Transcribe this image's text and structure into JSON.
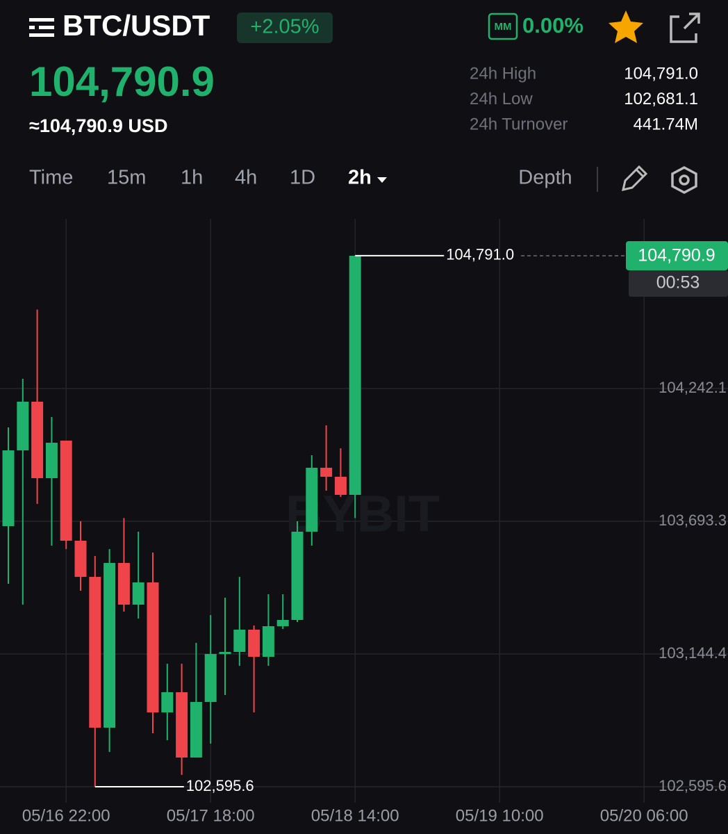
{
  "header": {
    "symbol": "BTC/USDT",
    "change": "+2.05%",
    "mm_label": "MM",
    "mm_value": "0.00%",
    "price": "104,790.9",
    "price_usd": "≈104,790.9 USD",
    "stats": [
      {
        "label": "24h High",
        "value": "104,791.0"
      },
      {
        "label": "24h Low",
        "value": "102,681.1"
      },
      {
        "label": "24h Turnover",
        "value": "441.74M"
      }
    ]
  },
  "tabs": [
    "Time",
    "15m",
    "1h",
    "4h",
    "1D",
    "2h"
  ],
  "depth": "Depth",
  "chart_data": {
    "type": "candlestick",
    "watermark": "BYBIT",
    "up_color": "#20b26c",
    "down_color": "#ef454a",
    "x": [
      0,
      1,
      2,
      3,
      4,
      5,
      6,
      7,
      8,
      9,
      10,
      11,
      12,
      13,
      14,
      15,
      16,
      17,
      18,
      19,
      20,
      21,
      22,
      23,
      24
    ],
    "open": [
      103673.1,
      103986.3,
      104187.4,
      103871.3,
      104026.5,
      103612.7,
      103463.3,
      102839.8,
      103520.8,
      103348.4,
      103440.4,
      102903.0,
      102986.4,
      102716.3,
      102946.1,
      103144.4,
      103153.0,
      103245.0,
      103132.9,
      103259.3,
      103285.2,
      103650.1,
      103914.4,
      103877.1,
      103802.4
    ],
    "high": [
      104081.1,
      104282.2,
      104568.6,
      104124.2,
      104026.5,
      103693.2,
      103549.5,
      103578.3,
      103706.6,
      103650.1,
      103563.9,
      103104.2,
      103104.2,
      103190.4,
      103305.3,
      103377.1,
      103463.3,
      103262.2,
      103391.5,
      103391.5,
      103693.2,
      103966.2,
      104089.7,
      103994.9,
      104791.0
    ],
    "low": [
      103434.6,
      103348.4,
      103765.0,
      103592.6,
      103578.3,
      103405.9,
      102595.6,
      102739.3,
      103319.7,
      103290.9,
      102816.8,
      102788.1,
      102644.4,
      102716.3,
      102773.7,
      102974.9,
      103095.6,
      102903.0,
      103095.6,
      103247.8,
      103276.6,
      103592.6,
      103819.6,
      103793.8,
      103706.6
    ],
    "close": [
      103986.3,
      104187.4,
      103871.3,
      104017.9,
      103612.7,
      103463.3,
      102839.8,
      103520.8,
      103348.4,
      103440.4,
      102903.0,
      102986.4,
      102716.3,
      102946.1,
      103144.4,
      103153.0,
      103245.0,
      103132.9,
      103259.3,
      103285.2,
      103650.1,
      103914.4,
      103877.1,
      103802.4,
      104790.9
    ],
    "xlim": [
      -0.58,
      49.8
    ],
    "xticks": [
      {
        "value": 4,
        "label": "05/16 22:00"
      },
      {
        "value": 14,
        "label": "05/17 18:00"
      },
      {
        "value": 24,
        "label": "05/18 14:00"
      },
      {
        "value": 34,
        "label": "05/19 10:00"
      },
      {
        "value": 44,
        "label": "05/20 06:00"
      }
    ],
    "ylim": [
      102529.5,
      104943.1
    ],
    "yticks": [
      {
        "value": 102595.6,
        "label": "102,595.6"
      },
      {
        "value": 103144.4,
        "label": "103,144.4"
      },
      {
        "value": 103693.3,
        "label": "103,693.3"
      },
      {
        "value": 104242.1,
        "label": "104,242.1"
      }
    ],
    "high_marker": {
      "value": 104791.0,
      "label": "104,791.0",
      "x": 24
    },
    "low_marker": {
      "value": 102595.6,
      "label": "102,595.6",
      "x": 6
    },
    "last_price": {
      "value": 104790.9,
      "label": "104,790.9"
    },
    "countdown": "00:53"
  }
}
